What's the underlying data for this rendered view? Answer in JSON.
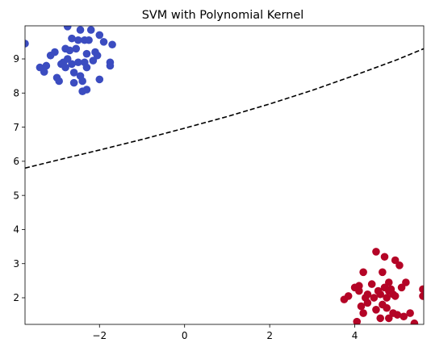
{
  "chart_data": {
    "type": "scatter",
    "title": "SVM with Polynomial Kernel",
    "xlabel": "",
    "ylabel": "",
    "xlim": [
      -3.75,
      5.62
    ],
    "ylim": [
      1.22,
      9.97
    ],
    "x_ticks": [
      -2,
      0,
      2,
      4
    ],
    "y_ticks": [
      2,
      3,
      4,
      5,
      6,
      7,
      8,
      9
    ],
    "grid": false,
    "legend": "none",
    "colors": {
      "class_0": "#3b4cc0",
      "class_1": "#b40426",
      "boundary": "#000000"
    },
    "series": [
      {
        "color_key": "class_0",
        "points": [
          [
            -3.75,
            9.45
          ],
          [
            -3.4,
            8.75
          ],
          [
            -3.25,
            8.8
          ],
          [
            -3.3,
            8.62
          ],
          [
            -3.15,
            9.1
          ],
          [
            -3.05,
            9.2
          ],
          [
            -3.0,
            8.45
          ],
          [
            -2.95,
            8.35
          ],
          [
            -2.9,
            8.85
          ],
          [
            -2.85,
            8.9
          ],
          [
            -2.8,
            9.3
          ],
          [
            -2.8,
            8.75
          ],
          [
            -2.75,
            9.0
          ],
          [
            -2.75,
            9.95
          ],
          [
            -2.7,
            9.25
          ],
          [
            -2.65,
            9.6
          ],
          [
            -2.65,
            8.85
          ],
          [
            -2.6,
            8.3
          ],
          [
            -2.6,
            8.6
          ],
          [
            -2.55,
            9.3
          ],
          [
            -2.5,
            8.9
          ],
          [
            -2.5,
            9.55
          ],
          [
            -2.45,
            8.5
          ],
          [
            -2.45,
            9.85
          ],
          [
            -2.4,
            8.05
          ],
          [
            -2.4,
            8.35
          ],
          [
            -2.35,
            8.9
          ],
          [
            -2.35,
            9.55
          ],
          [
            -2.3,
            8.1
          ],
          [
            -2.3,
            9.15
          ],
          [
            -2.3,
            8.75
          ],
          [
            -2.25,
            9.55
          ],
          [
            -2.2,
            9.85
          ],
          [
            -2.15,
            8.95
          ],
          [
            -2.1,
            9.2
          ],
          [
            -2.05,
            9.1
          ],
          [
            -2.0,
            8.4
          ],
          [
            -2.0,
            9.7
          ],
          [
            -1.9,
            9.5
          ],
          [
            -1.75,
            8.9
          ],
          [
            -1.75,
            8.8
          ],
          [
            -1.7,
            9.42
          ]
        ]
      },
      {
        "color_key": "class_1",
        "points": [
          [
            3.75,
            1.95
          ],
          [
            3.85,
            2.05
          ],
          [
            4.0,
            2.3
          ],
          [
            4.05,
            1.3
          ],
          [
            4.1,
            2.2
          ],
          [
            4.1,
            2.35
          ],
          [
            4.15,
            1.75
          ],
          [
            4.2,
            2.75
          ],
          [
            4.2,
            1.55
          ],
          [
            4.25,
            2.0
          ],
          [
            4.3,
            2.1
          ],
          [
            4.3,
            1.85
          ],
          [
            4.4,
            2.4
          ],
          [
            4.45,
            2.0
          ],
          [
            4.5,
            1.65
          ],
          [
            4.5,
            3.35
          ],
          [
            4.55,
            2.2
          ],
          [
            4.6,
            2.1
          ],
          [
            4.6,
            1.4
          ],
          [
            4.65,
            2.75
          ],
          [
            4.65,
            1.8
          ],
          [
            4.7,
            3.2
          ],
          [
            4.7,
            2.3
          ],
          [
            4.75,
            1.7
          ],
          [
            4.75,
            2.0
          ],
          [
            4.8,
            2.45
          ],
          [
            4.8,
            2.2
          ],
          [
            4.8,
            1.4
          ],
          [
            4.85,
            2.25
          ],
          [
            4.9,
            2.1
          ],
          [
            4.9,
            1.55
          ],
          [
            4.95,
            2.05
          ],
          [
            4.95,
            3.1
          ],
          [
            5.0,
            1.5
          ],
          [
            5.05,
            2.95
          ],
          [
            5.1,
            2.3
          ],
          [
            5.15,
            1.45
          ],
          [
            5.2,
            2.45
          ],
          [
            5.3,
            1.55
          ],
          [
            5.4,
            1.25
          ],
          [
            5.6,
            2.25
          ],
          [
            5.6,
            2.05
          ]
        ]
      }
    ],
    "decision_boundary": {
      "style": "dashed",
      "points": [
        [
          -3.75,
          5.8
        ],
        [
          -3.0,
          6.03
        ],
        [
          -2.0,
          6.33
        ],
        [
          -1.0,
          6.64
        ],
        [
          0.0,
          6.97
        ],
        [
          1.0,
          7.31
        ],
        [
          2.0,
          7.68
        ],
        [
          3.0,
          8.08
        ],
        [
          4.0,
          8.52
        ],
        [
          5.0,
          8.98
        ],
        [
          5.62,
          9.3
        ]
      ]
    }
  }
}
